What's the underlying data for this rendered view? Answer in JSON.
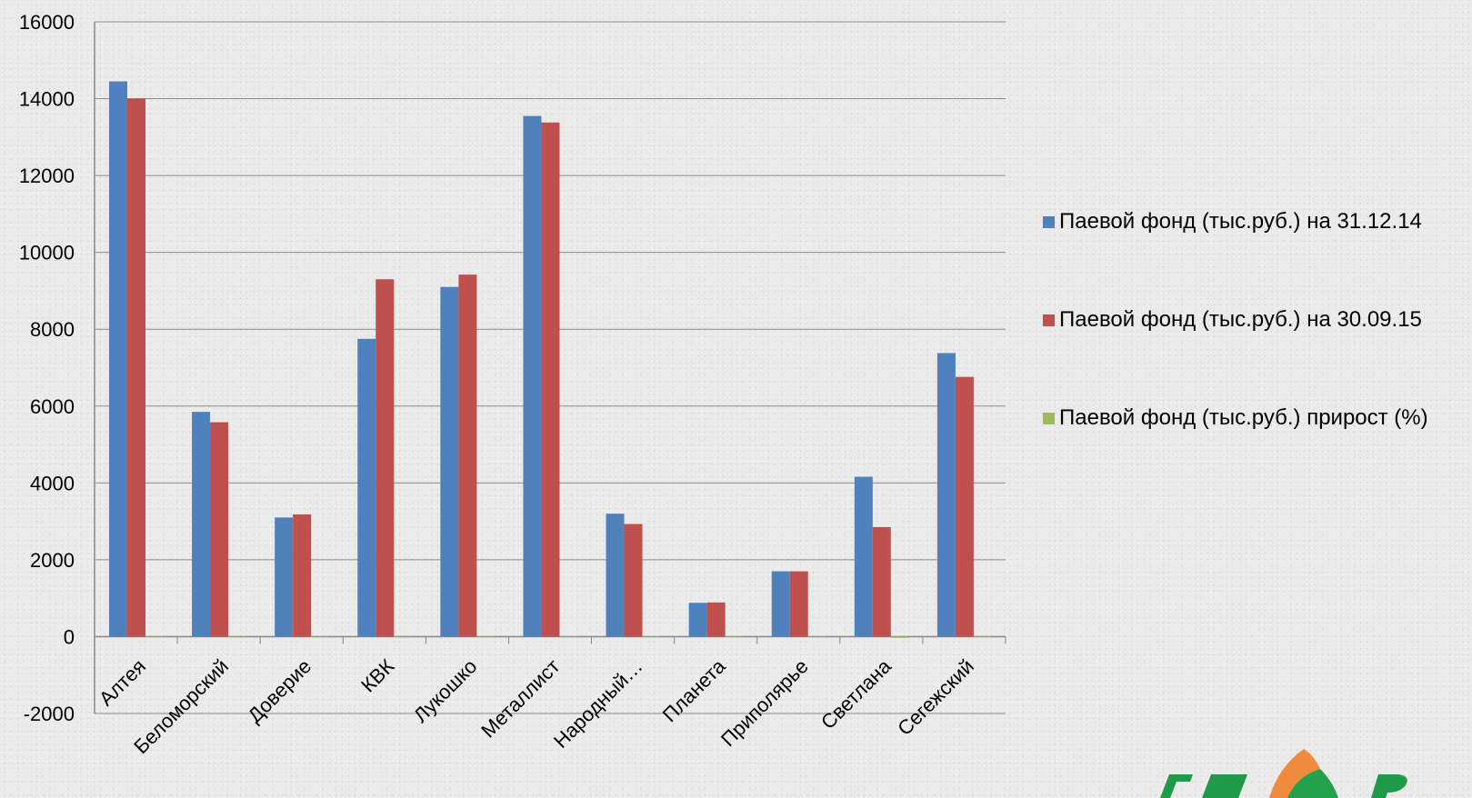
{
  "chart_data": {
    "type": "bar",
    "categories": [
      "Алтея",
      "Беломорский",
      "Доверие",
      "КВК",
      "Лукошко",
      "Металлист",
      "Народный…",
      "Планета",
      "Приполярье",
      "Светлана",
      "Сегежский"
    ],
    "series": [
      {
        "name": "Паевой фонд (тыс.руб.) на 31.12.14",
        "color": "#4f81bd",
        "values": [
          14450,
          5850,
          3100,
          7750,
          9100,
          13550,
          3200,
          880,
          1700,
          4160,
          7380
        ]
      },
      {
        "name": "Паевой фонд (тыс.руб.) на 30.09.15",
        "color": "#c0504d",
        "values": [
          14000,
          5580,
          3180,
          9300,
          9420,
          13380,
          2930,
          890,
          1700,
          2850,
          6760
        ]
      },
      {
        "name": "Паевой фонд (тыс.руб.) прирост (%)",
        "color": "#9bbb59",
        "values": [
          -3,
          -5,
          3,
          20,
          4,
          -1,
          -8,
          1,
          0,
          -31,
          -8
        ]
      }
    ],
    "ylim": [
      -2000,
      16000
    ],
    "yticks": [
      "-2000",
      "0",
      "2000",
      "4000",
      "6000",
      "8000",
      "10000",
      "12000",
      "14000",
      "16000"
    ],
    "grid": true,
    "legend_position": "right"
  }
}
